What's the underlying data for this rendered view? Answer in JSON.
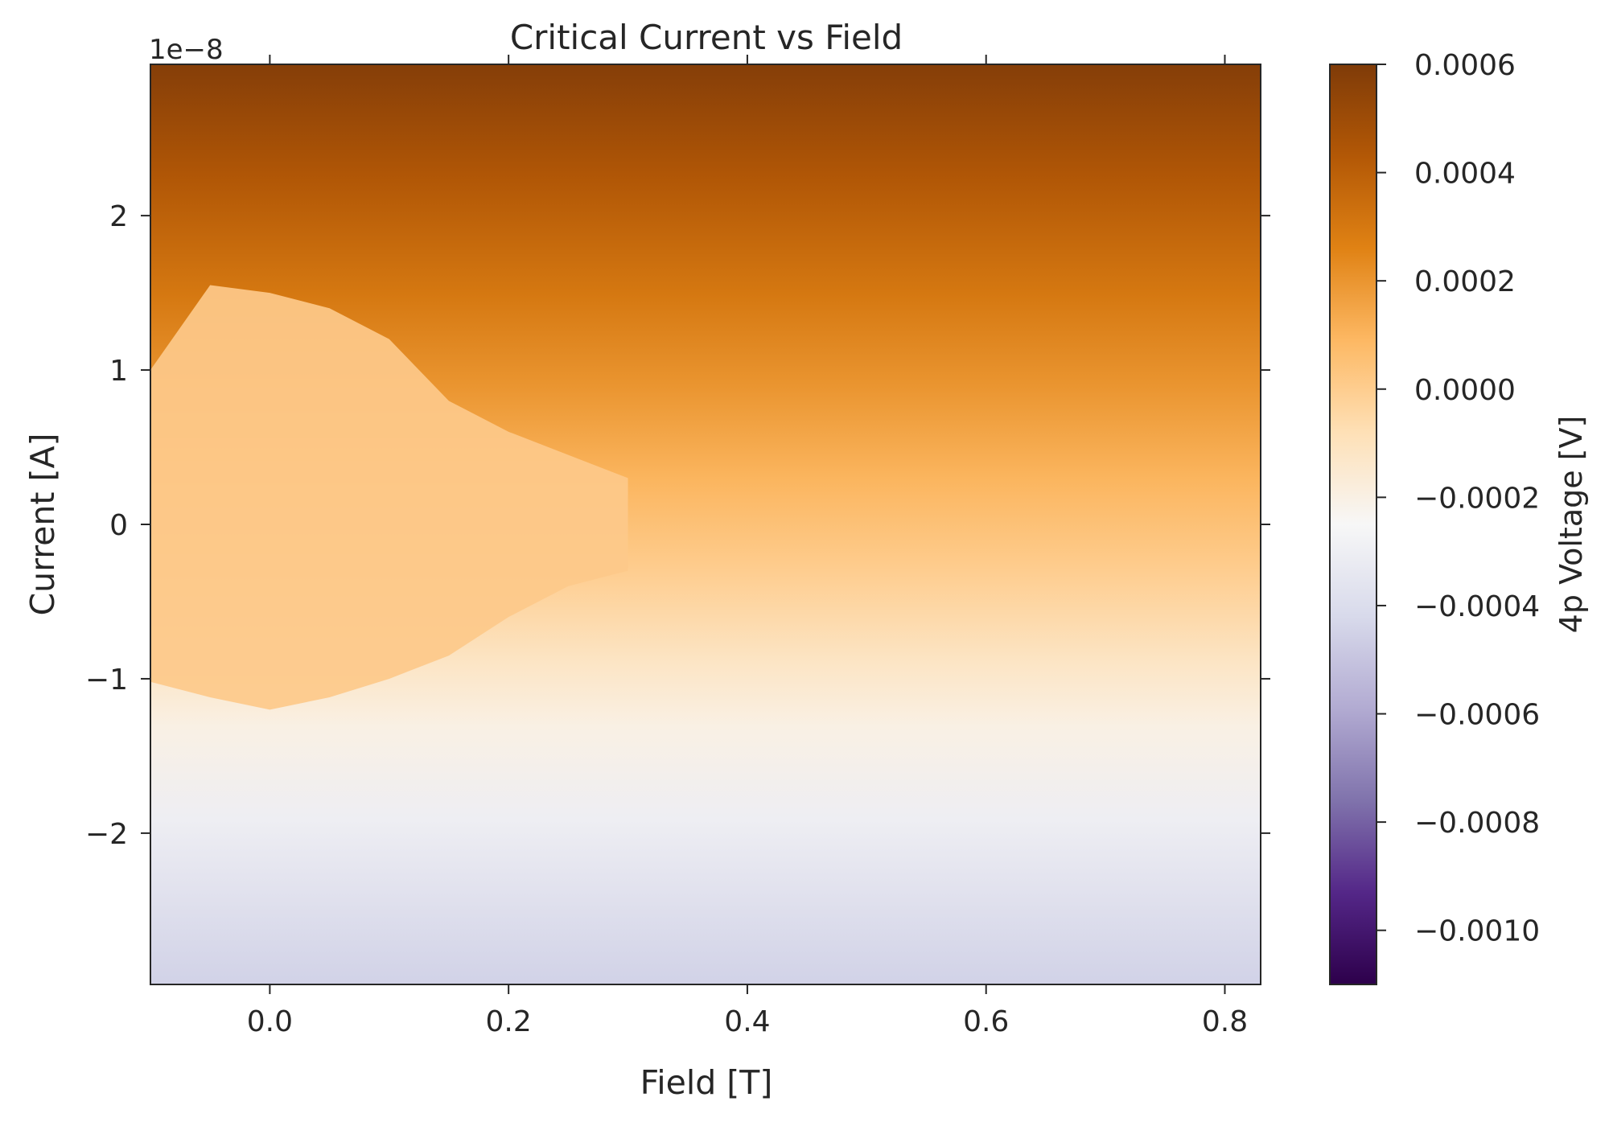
{
  "chart_data": {
    "type": "heatmap",
    "title": "Critical Current vs Field",
    "xlabel": "Field [T]",
    "ylabel": "Current [A]",
    "y_offset_label": "1e−8",
    "xlim": [
      -0.1,
      0.83
    ],
    "ylim": [
      -2.98e-08,
      2.98e-08
    ],
    "x_ticks": [
      0.0,
      0.2,
      0.4,
      0.6,
      0.8
    ],
    "x_tick_labels": [
      "0.0",
      "0.2",
      "0.4",
      "0.6",
      "0.8"
    ],
    "y_ticks": [
      -2e-08,
      -1e-08,
      0,
      1e-08,
      2e-08
    ],
    "y_tick_labels": [
      "−2",
      "−1",
      "0",
      "1",
      "2"
    ],
    "colorbar": {
      "label": "4p Voltage [V]",
      "colormap": "PuOr_r",
      "vmin": -0.0011,
      "vmax": 0.0006,
      "ticks": [
        0.0006,
        0.0004,
        0.0002,
        0.0,
        -0.0002,
        -0.0004,
        -0.0006,
        -0.0008,
        -0.001
      ],
      "tick_labels": [
        "0.0006",
        "0.0004",
        "0.0002",
        "0.0000",
        "−0.0002",
        "−0.0004",
        "−0.0006",
        "−0.0008",
        "−0.0010"
      ]
    },
    "superconducting_region": {
      "voltage": 0.0,
      "field": [
        -0.1,
        -0.05,
        0.0,
        0.05,
        0.1,
        0.15,
        0.2,
        0.25,
        0.3
      ],
      "upper_critical_current": [
        1e-08,
        1.55e-08,
        1.5e-08,
        1.4e-08,
        1.2e-08,
        8e-09,
        6e-09,
        4.5e-09,
        3e-09
      ],
      "lower_critical_current": [
        -1.02e-08,
        -1.12e-08,
        -1.2e-08,
        -1.12e-08,
        -1e-08,
        -8.5e-09,
        -6e-09,
        -4e-09,
        -3e-09
      ]
    },
    "grid": false,
    "colors": {
      "axis": "#262626",
      "background": "#ffffff"
    }
  }
}
